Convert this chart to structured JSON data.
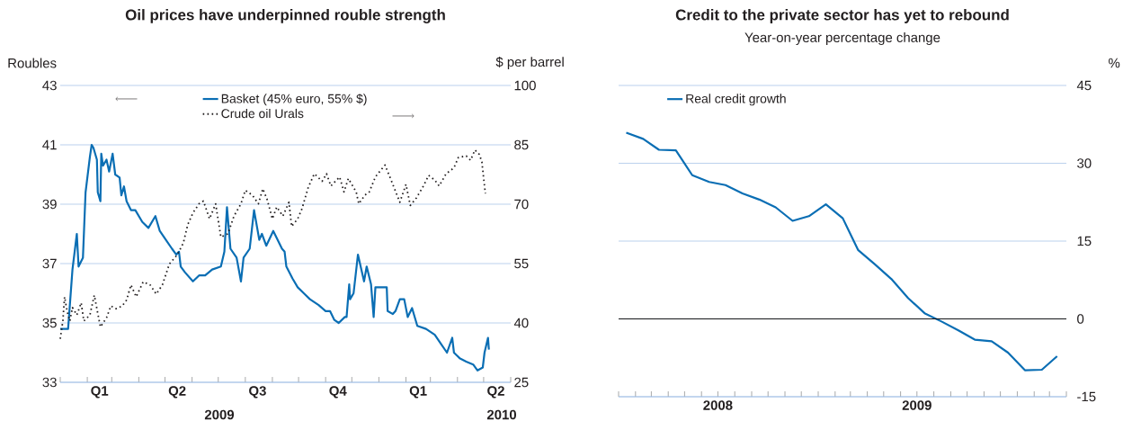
{
  "chart_data": [
    {
      "type": "line",
      "title": "Oil prices have underpinned rouble strength",
      "ylabel": "Roubles",
      "y2label": "$ per barrel",
      "xlim": [
        "2009-01-01",
        "2010-06-01"
      ],
      "xticks": [
        {
          "value": "2009-01-01",
          "label": null
        },
        {
          "value": "2009-02-01",
          "label": null
        },
        {
          "value": "2009-02-15",
          "label": "Q1"
        },
        {
          "value": "2009-03-01",
          "label": null
        },
        {
          "value": "2009-04-01",
          "label": null
        },
        {
          "value": "2009-05-01",
          "label": null
        },
        {
          "value": "2009-05-15",
          "label": "Q2"
        },
        {
          "value": "2009-06-01",
          "label": null
        },
        {
          "value": "2009-07-01",
          "label": null
        },
        {
          "value": "2009-08-01",
          "label": null
        },
        {
          "value": "2009-08-15",
          "label": "Q3"
        },
        {
          "value": "2009-09-01",
          "label": null
        },
        {
          "value": "2009-10-01",
          "label": null
        },
        {
          "value": "2009-11-01",
          "label": null
        },
        {
          "value": "2009-11-15",
          "label": "Q4"
        },
        {
          "value": "2009-12-01",
          "label": null
        },
        {
          "value": "2010-01-01",
          "label": null
        },
        {
          "value": "2010-02-01",
          "label": null
        },
        {
          "value": "2010-02-15",
          "label": "Q1"
        },
        {
          "value": "2010-03-01",
          "label": null
        },
        {
          "value": "2010-04-01",
          "label": null
        },
        {
          "value": "2010-05-01",
          "label": null
        },
        {
          "value": "2010-05-15",
          "label": "Q2"
        },
        {
          "value": "2010-06-01",
          "label": null
        }
      ],
      "ylim": [
        33,
        43
      ],
      "yticks": [
        33,
        35,
        37,
        39,
        41,
        43
      ],
      "y2lim": [
        25,
        100
      ],
      "y2ticks": [
        25,
        40,
        55,
        70,
        85,
        100
      ],
      "grid": "y",
      "legend": "top",
      "marker": "none",
      "annotations": [
        "2009",
        "2010"
      ],
      "series": [
        {
          "name": "Basket (45% euro, 55% $)",
          "color": "#0a6eb4",
          "axis": "y",
          "line_style": "solid",
          "x": [
            "2009-01-01",
            "2009-01-10",
            "2009-01-15",
            "2009-01-20",
            "2009-01-22",
            "2009-01-27",
            "2009-01-30",
            "2009-02-04",
            "2009-02-06",
            "2009-02-08",
            "2009-02-12",
            "2009-02-13",
            "2009-02-16",
            "2009-02-17",
            "2009-02-19",
            "2009-02-23",
            "2009-02-26",
            "2009-03-02",
            "2009-03-05",
            "2009-03-10",
            "2009-03-12",
            "2009-03-15",
            "2009-03-18",
            "2009-03-23",
            "2009-03-28",
            "2009-04-05",
            "2009-04-12",
            "2009-04-20",
            "2009-04-25",
            "2009-05-02",
            "2009-05-09",
            "2009-05-14",
            "2009-05-17",
            "2009-05-19",
            "2009-05-24",
            "2009-06-02",
            "2009-06-09",
            "2009-06-16",
            "2009-06-24",
            "2009-07-04",
            "2009-07-08",
            "2009-07-11",
            "2009-07-15",
            "2009-07-22",
            "2009-07-27",
            "2009-07-30",
            "2009-08-06",
            "2009-08-11",
            "2009-08-17",
            "2009-08-20",
            "2009-08-25",
            "2009-09-02",
            "2009-09-12",
            "2009-09-15",
            "2009-09-17",
            "2009-09-24",
            "2009-09-30",
            "2009-10-07",
            "2009-10-14",
            "2009-10-24",
            "2009-11-01",
            "2009-11-06",
            "2009-11-11",
            "2009-11-16",
            "2009-11-23",
            "2009-11-25",
            "2009-11-28",
            "2009-11-29",
            "2009-12-03",
            "2009-12-08",
            "2009-12-15",
            "2009-12-18",
            "2009-12-23",
            "2009-12-26",
            "2009-12-28",
            "2010-01-10",
            "2010-01-11",
            "2010-01-17",
            "2010-01-20",
            "2010-01-25",
            "2010-01-30",
            "2010-02-03",
            "2010-02-08",
            "2010-02-14",
            "2010-02-24",
            "2010-03-06",
            "2010-03-13",
            "2010-03-20",
            "2010-03-26",
            "2010-03-28",
            "2010-04-04",
            "2010-04-11",
            "2010-04-19",
            "2010-04-24",
            "2010-04-30",
            "2010-05-02",
            "2010-05-06",
            "2010-05-07"
          ],
          "values": [
            34.8,
            34.8,
            36.8,
            38.0,
            36.9,
            37.2,
            39.4,
            40.6,
            41.0,
            40.9,
            40.5,
            39.4,
            39.1,
            40.7,
            40.3,
            40.5,
            40.1,
            40.7,
            40.0,
            39.9,
            39.3,
            39.6,
            39.1,
            38.8,
            38.8,
            38.4,
            38.2,
            38.6,
            38.1,
            37.8,
            37.5,
            37.3,
            37.4,
            36.9,
            36.7,
            36.4,
            36.6,
            36.6,
            36.8,
            36.9,
            37.4,
            38.9,
            37.5,
            37.2,
            36.4,
            37.2,
            37.5,
            38.8,
            37.8,
            38.0,
            37.6,
            38.1,
            37.5,
            37.4,
            36.9,
            36.5,
            36.2,
            36.0,
            35.8,
            35.6,
            35.4,
            35.4,
            35.1,
            35.0,
            35.2,
            35.2,
            36.3,
            35.8,
            36.0,
            37.3,
            36.4,
            36.9,
            36.3,
            35.2,
            36.2,
            36.2,
            35.4,
            35.3,
            35.4,
            35.8,
            35.8,
            35.2,
            35.5,
            34.9,
            34.8,
            34.6,
            34.3,
            34.0,
            34.5,
            34.0,
            33.8,
            33.7,
            33.6,
            33.4,
            33.5,
            34.0,
            34.5,
            34.1
          ]
        },
        {
          "name": "Crude oil Urals",
          "color": "#231f20",
          "axis": "y2",
          "line_style": "dotted",
          "x": [
            "2009-01-01",
            "2009-01-04",
            "2009-01-06",
            "2009-01-09",
            "2009-01-12",
            "2009-01-15",
            "2009-01-20",
            "2009-01-25",
            "2009-01-28",
            "2009-02-04",
            "2009-02-09",
            "2009-02-16",
            "2009-02-23",
            "2009-02-28",
            "2009-03-06",
            "2009-03-13",
            "2009-03-18",
            "2009-03-23",
            "2009-03-29",
            "2009-04-06",
            "2009-04-14",
            "2009-04-21",
            "2009-04-28",
            "2009-05-06",
            "2009-05-15",
            "2009-05-22",
            "2009-05-27",
            "2009-06-02",
            "2009-06-09",
            "2009-06-14",
            "2009-06-21",
            "2009-06-28",
            "2009-07-04",
            "2009-07-12",
            "2009-07-19",
            "2009-07-27",
            "2009-08-01",
            "2009-08-09",
            "2009-08-16",
            "2009-08-21",
            "2009-08-26",
            "2009-09-01",
            "2009-09-06",
            "2009-09-13",
            "2009-09-20",
            "2009-09-23",
            "2009-09-30",
            "2009-10-05",
            "2009-10-12",
            "2009-10-19",
            "2009-10-28",
            "2009-11-02",
            "2009-11-07",
            "2009-11-17",
            "2009-11-22",
            "2009-11-27",
            "2009-12-06",
            "2009-12-09",
            "2009-12-16",
            "2009-12-21",
            "2009-12-28",
            "2010-01-08",
            "2010-01-15",
            "2010-01-25",
            "2010-02-01",
            "2010-02-06",
            "2010-02-13",
            "2010-02-21",
            "2010-02-27",
            "2010-03-06",
            "2010-03-11",
            "2010-03-19",
            "2010-03-28",
            "2010-04-02",
            "2010-04-11",
            "2010-04-16",
            "2010-04-21",
            "2010-04-26",
            "2010-04-29",
            "2010-05-01",
            "2010-05-03"
          ],
          "values": [
            36.0,
            40.5,
            46.6,
            42.8,
            40.5,
            43.9,
            42.0,
            45.1,
            40.5,
            42.0,
            47.0,
            39.0,
            41.3,
            44.3,
            43.6,
            44.3,
            45.8,
            49.6,
            46.6,
            50.4,
            49.6,
            47.3,
            49.6,
            54.9,
            57.2,
            60.2,
            64.8,
            67.8,
            70.1,
            70.8,
            66.3,
            70.1,
            61.7,
            62.5,
            67.0,
            70.1,
            73.5,
            72.3,
            70.1,
            73.9,
            71.2,
            66.3,
            69.3,
            67.0,
            70.5,
            64.4,
            66.3,
            68.9,
            74.2,
            77.7,
            75.8,
            77.7,
            74.6,
            76.9,
            73.1,
            76.5,
            73.1,
            70.1,
            72.3,
            73.1,
            76.9,
            79.9,
            76.1,
            70.5,
            75.0,
            69.7,
            71.6,
            74.6,
            77.3,
            76.1,
            74.6,
            77.7,
            79.2,
            81.8,
            82.2,
            81.1,
            83.7,
            82.6,
            80.7,
            76.5,
            72.7
          ]
        }
      ]
    },
    {
      "type": "line",
      "title": "Credit to the private sector has yet to rebound",
      "subtitle": "Year-on-year percentage change",
      "y2label": "%",
      "xlim": [
        "2008-01-01",
        "2010-04-01"
      ],
      "xticks": [
        {
          "value": "2008-01-01",
          "label": null
        },
        {
          "value": "2008-02-01",
          "label": null
        },
        {
          "value": "2008-03-01",
          "label": null
        },
        {
          "value": "2008-04-01",
          "label": null
        },
        {
          "value": "2008-05-01",
          "label": null
        },
        {
          "value": "2008-06-01",
          "label": null
        },
        {
          "value": "2008-07-01",
          "label": null
        },
        {
          "value": "2008-07-01",
          "label": "2008"
        },
        {
          "value": "2008-08-01",
          "label": null
        },
        {
          "value": "2008-09-01",
          "label": null
        },
        {
          "value": "2008-10-01",
          "label": null
        },
        {
          "value": "2008-11-01",
          "label": null
        },
        {
          "value": "2008-12-01",
          "label": null
        },
        {
          "value": "2009-01-01",
          "label": null
        },
        {
          "value": "2009-02-01",
          "label": null
        },
        {
          "value": "2009-03-01",
          "label": null
        },
        {
          "value": "2009-04-01",
          "label": null
        },
        {
          "value": "2009-05-01",
          "label": null
        },
        {
          "value": "2009-06-01",
          "label": null
        },
        {
          "value": "2009-07-01",
          "label": null
        },
        {
          "value": "2009-07-01",
          "label": "2009"
        },
        {
          "value": "2009-08-01",
          "label": null
        },
        {
          "value": "2009-09-01",
          "label": null
        },
        {
          "value": "2009-10-01",
          "label": null
        },
        {
          "value": "2009-11-01",
          "label": null
        },
        {
          "value": "2009-12-01",
          "label": null
        },
        {
          "value": "2010-01-01",
          "label": null
        },
        {
          "value": "2010-02-01",
          "label": null
        },
        {
          "value": "2010-03-01",
          "label": null
        },
        {
          "value": "2010-04-01",
          "label": null
        }
      ],
      "y2lim": [
        -15,
        45
      ],
      "y2ticks": [
        -15,
        0,
        15,
        30,
        45
      ],
      "grid": "y",
      "legend": "top left",
      "marker": "none",
      "ref_lines": [
        {
          "axis": "y2",
          "value": 0,
          "color": "#000000"
        }
      ],
      "series": [
        {
          "name": "Real credit growth",
          "color": "#0a6eb4",
          "axis": "y2",
          "line_style": "solid",
          "x": [
            "2008-01-15",
            "2008-02-15",
            "2008-03-15",
            "2008-04-15",
            "2008-05-15",
            "2008-06-15",
            "2008-07-15",
            "2008-08-15",
            "2008-09-15",
            "2008-10-15",
            "2008-11-15",
            "2008-12-15",
            "2009-01-15",
            "2009-02-15",
            "2009-03-15",
            "2009-04-15",
            "2009-05-15",
            "2009-06-15",
            "2009-07-15",
            "2009-08-15",
            "2009-09-15",
            "2009-10-15",
            "2009-11-15",
            "2009-12-15",
            "2010-01-15",
            "2010-02-15",
            "2010-03-15"
          ],
          "values": [
            35.9,
            34.7,
            32.6,
            32.5,
            27.7,
            26.4,
            25.8,
            24.2,
            23.0,
            21.5,
            18.9,
            19.8,
            22.1,
            19.4,
            13.3,
            10.5,
            7.7,
            4.0,
            1.1,
            -0.5,
            -2.2,
            -4.0,
            -4.3,
            -6.5,
            -9.9,
            -9.8,
            -7.2
          ]
        }
      ]
    }
  ]
}
